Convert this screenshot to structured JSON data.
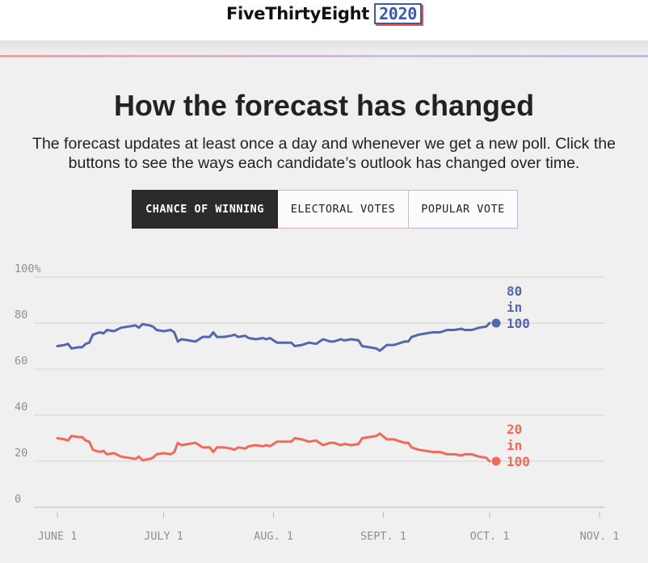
{
  "header": {
    "brand": "FiveThirtyEight",
    "year": "2020"
  },
  "headline": "How the forecast has changed",
  "dek": "The forecast updates at least once a day and whenever we get a new poll. Click the buttons to see the ways each candidate’s outlook has changed over time.",
  "buttons": [
    {
      "label": "Chance of winning",
      "active": true
    },
    {
      "label": "Electoral votes",
      "active": false
    },
    {
      "label": "Popular vote",
      "active": false
    }
  ],
  "colors": {
    "blue": "#5467ad",
    "red": "#ee6a5b",
    "grid": "#d2d2d2"
  },
  "chart_data": {
    "type": "line",
    "title": "How the forecast has changed",
    "xlabel": "",
    "ylabel": "",
    "ylim": [
      0,
      100
    ],
    "yticks": [
      {
        "value": 0,
        "label": "0"
      },
      {
        "value": 20,
        "label": "20"
      },
      {
        "value": 40,
        "label": "40"
      },
      {
        "value": 60,
        "label": "60"
      },
      {
        "value": 80,
        "label": "80"
      },
      {
        "value": 100,
        "label": "100%"
      }
    ],
    "xlim": [
      0,
      153
    ],
    "xticks": [
      {
        "day": 0,
        "label": "JUNE 1"
      },
      {
        "day": 30,
        "label": "JULY 1"
      },
      {
        "day": 61,
        "label": "AUG. 1"
      },
      {
        "day": 92,
        "label": "SEPT. 1"
      },
      {
        "day": 122,
        "label": "OCT. 1"
      },
      {
        "day": 153,
        "label": "NOV. 1"
      }
    ],
    "series": [
      {
        "name": "blue",
        "color": "#5467ad",
        "end_label": [
          "80",
          "in",
          "100"
        ],
        "points": [
          [
            0,
            70
          ],
          [
            2,
            70.5
          ],
          [
            3,
            71
          ],
          [
            4,
            69
          ],
          [
            6,
            69.5
          ],
          [
            7,
            69.5
          ],
          [
            8,
            71
          ],
          [
            9,
            71.5
          ],
          [
            10,
            75
          ],
          [
            12,
            76
          ],
          [
            13,
            75.5
          ],
          [
            14,
            77
          ],
          [
            16,
            76.5
          ],
          [
            18,
            78
          ],
          [
            20,
            78.5
          ],
          [
            22,
            79
          ],
          [
            23,
            78
          ],
          [
            24,
            79.5
          ],
          [
            26,
            79
          ],
          [
            27,
            78.5
          ],
          [
            28,
            77
          ],
          [
            30,
            76.5
          ],
          [
            32,
            77
          ],
          [
            33,
            76
          ],
          [
            34,
            72
          ],
          [
            35,
            73
          ],
          [
            37,
            72.5
          ],
          [
            39,
            72
          ],
          [
            40,
            73
          ],
          [
            41,
            74
          ],
          [
            43,
            74
          ],
          [
            44,
            76
          ],
          [
            45,
            74
          ],
          [
            47,
            74
          ],
          [
            49,
            74.5
          ],
          [
            50,
            75
          ],
          [
            51,
            74
          ],
          [
            53,
            74.5
          ],
          [
            54,
            73.5
          ],
          [
            56,
            73
          ],
          [
            58,
            73.5
          ],
          [
            59,
            73
          ],
          [
            60,
            73.5
          ],
          [
            62,
            71.5
          ],
          [
            64,
            71.5
          ],
          [
            66,
            71.5
          ],
          [
            67,
            70
          ],
          [
            69,
            70.5
          ],
          [
            71,
            71.5
          ],
          [
            73,
            71
          ],
          [
            75,
            73
          ],
          [
            77,
            72
          ],
          [
            78,
            72
          ],
          [
            80,
            73
          ],
          [
            81,
            72.5
          ],
          [
            83,
            73
          ],
          [
            85,
            72.5
          ],
          [
            86,
            70
          ],
          [
            88,
            69.5
          ],
          [
            90,
            69
          ],
          [
            91,
            68
          ],
          [
            93,
            70.5
          ],
          [
            95,
            70.5
          ],
          [
            96,
            71
          ],
          [
            98,
            72
          ],
          [
            99,
            72
          ],
          [
            100,
            74
          ],
          [
            102,
            75
          ],
          [
            104,
            75.5
          ],
          [
            106,
            76
          ],
          [
            108,
            76
          ],
          [
            110,
            77
          ],
          [
            112,
            77
          ],
          [
            114,
            77.5
          ],
          [
            115,
            77
          ],
          [
            117,
            77
          ],
          [
            119,
            78
          ],
          [
            121,
            78.5
          ],
          [
            122,
            80
          ]
        ]
      },
      {
        "name": "red",
        "color": "#ee6a5b",
        "end_label": [
          "20",
          "in",
          "100"
        ],
        "points": [
          [
            0,
            30
          ],
          [
            2,
            29.5
          ],
          [
            3,
            29
          ],
          [
            4,
            31
          ],
          [
            6,
            30.5
          ],
          [
            7,
            30.5
          ],
          [
            8,
            29
          ],
          [
            9,
            28.5
          ],
          [
            10,
            25
          ],
          [
            12,
            24
          ],
          [
            13,
            24.5
          ],
          [
            14,
            23
          ],
          [
            16,
            23.5
          ],
          [
            18,
            22
          ],
          [
            20,
            21.5
          ],
          [
            22,
            21
          ],
          [
            23,
            22
          ],
          [
            24,
            20.5
          ],
          [
            26,
            21
          ],
          [
            27,
            21.5
          ],
          [
            28,
            23
          ],
          [
            30,
            23.5
          ],
          [
            32,
            23
          ],
          [
            33,
            24
          ],
          [
            34,
            28
          ],
          [
            35,
            27
          ],
          [
            37,
            27.5
          ],
          [
            39,
            28
          ],
          [
            40,
            27
          ],
          [
            41,
            26
          ],
          [
            43,
            26
          ],
          [
            44,
            24
          ],
          [
            45,
            26
          ],
          [
            47,
            26
          ],
          [
            49,
            25.5
          ],
          [
            50,
            25
          ],
          [
            51,
            26
          ],
          [
            53,
            25.5
          ],
          [
            54,
            26.5
          ],
          [
            56,
            27
          ],
          [
            58,
            26.5
          ],
          [
            59,
            27
          ],
          [
            60,
            26.5
          ],
          [
            62,
            28.5
          ],
          [
            64,
            28.5
          ],
          [
            66,
            28.5
          ],
          [
            67,
            30
          ],
          [
            69,
            29.5
          ],
          [
            71,
            28.5
          ],
          [
            73,
            29
          ],
          [
            75,
            27
          ],
          [
            77,
            28
          ],
          [
            78,
            28
          ],
          [
            80,
            27
          ],
          [
            81,
            27.5
          ],
          [
            83,
            27
          ],
          [
            85,
            27.5
          ],
          [
            86,
            30
          ],
          [
            88,
            30.5
          ],
          [
            90,
            31
          ],
          [
            91,
            32
          ],
          [
            93,
            29.5
          ],
          [
            95,
            29.5
          ],
          [
            96,
            29
          ],
          [
            98,
            28
          ],
          [
            99,
            28
          ],
          [
            100,
            26
          ],
          [
            102,
            25
          ],
          [
            104,
            24.5
          ],
          [
            106,
            24
          ],
          [
            108,
            24
          ],
          [
            110,
            23
          ],
          [
            112,
            23
          ],
          [
            114,
            22.5
          ],
          [
            115,
            23
          ],
          [
            117,
            23
          ],
          [
            119,
            22
          ],
          [
            121,
            21.5
          ],
          [
            122,
            20
          ]
        ]
      }
    ]
  }
}
